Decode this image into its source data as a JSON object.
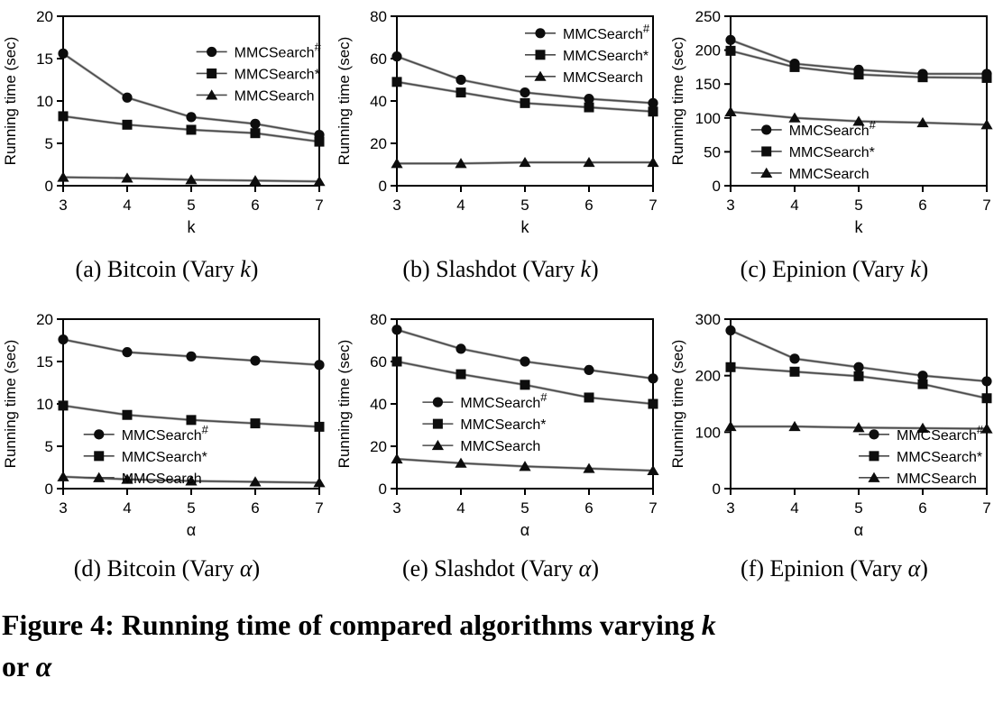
{
  "figure": {
    "caption_line1_pre": "Figure 4: Running time of compared algorithms varying ",
    "caption_line1_var": "k",
    "caption_line2_pre": "or ",
    "caption_line2_var": "α"
  },
  "styles": {
    "axis_color": "#000000",
    "line_color": "#4a4a4a",
    "line_shadow_color": "#b0b0b0",
    "marker_color": "#0d0d0d",
    "text_color": "#000000"
  },
  "chart_data": [
    {
      "id": "a",
      "type": "line",
      "dataset": "Bitcoin",
      "caption": {
        "pre": "(a) Bitcoin (Vary ",
        "var": "k",
        "post": ")"
      },
      "xlabel": "k",
      "ylabel": "Running time (sec)",
      "x": [
        3,
        4,
        5,
        6,
        7
      ],
      "xlim": [
        3,
        7
      ],
      "ylim": [
        0,
        20
      ],
      "yticks": [
        0,
        5,
        10,
        15,
        20
      ],
      "grid": false,
      "legend": {
        "position": "top-right",
        "x": 0.52,
        "y": 0.21
      },
      "series": [
        {
          "base": "MMCSearch",
          "sup": "#",
          "marker": "circle",
          "values": [
            15.6,
            10.4,
            8.1,
            7.3,
            6.0
          ]
        },
        {
          "base": "MMCSearch",
          "sup": "*",
          "marker": "square",
          "values": [
            8.2,
            7.2,
            6.6,
            6.2,
            5.2
          ]
        },
        {
          "base": "MMCSearch",
          "sup": "",
          "marker": "triangle",
          "values": [
            1.0,
            0.9,
            0.7,
            0.6,
            0.5
          ]
        }
      ]
    },
    {
      "id": "b",
      "type": "line",
      "dataset": "Slashdot",
      "caption": {
        "pre": "(b) Slashdot (Vary ",
        "var": "k",
        "post": ")"
      },
      "xlabel": "k",
      "ylabel": "Running time (sec)",
      "x": [
        3,
        4,
        5,
        6,
        7
      ],
      "xlim": [
        3,
        7
      ],
      "ylim": [
        0,
        80
      ],
      "yticks": [
        0,
        20,
        40,
        60,
        80
      ],
      "grid": false,
      "legend": {
        "position": "top-right",
        "x": 0.5,
        "y": 0.1
      },
      "series": [
        {
          "base": "MMCSearch",
          "sup": "#",
          "marker": "circle",
          "values": [
            61,
            50,
            44,
            41,
            39
          ]
        },
        {
          "base": "MMCSearch",
          "sup": "*",
          "marker": "square",
          "values": [
            49,
            44,
            39,
            37,
            35
          ]
        },
        {
          "base": "MMCSearch",
          "sup": "",
          "marker": "triangle",
          "values": [
            10.5,
            10.5,
            11,
            11,
            11
          ]
        }
      ]
    },
    {
      "id": "c",
      "type": "line",
      "dataset": "Epinion",
      "caption": {
        "pre": "(c) Epinion (Vary ",
        "var": "k",
        "post": ")"
      },
      "xlabel": "k",
      "ylabel": "Running time (sec)",
      "x": [
        3,
        4,
        5,
        6,
        7
      ],
      "xlim": [
        3,
        7
      ],
      "ylim": [
        0,
        250
      ],
      "yticks": [
        0,
        50,
        100,
        150,
        200,
        250
      ],
      "grid": false,
      "legend": {
        "position": "mid-left",
        "x": 0.08,
        "y": 0.67
      },
      "series": [
        {
          "base": "MMCSearch",
          "sup": "#",
          "marker": "circle",
          "values": [
            215,
            180,
            171,
            165,
            165
          ]
        },
        {
          "base": "MMCSearch",
          "sup": "*",
          "marker": "square",
          "values": [
            199,
            175,
            164,
            160,
            159
          ]
        },
        {
          "base": "MMCSearch",
          "sup": "",
          "marker": "triangle",
          "values": [
            109,
            100,
            95,
            93,
            90
          ]
        }
      ]
    },
    {
      "id": "d",
      "type": "line",
      "dataset": "Bitcoin",
      "caption": {
        "pre": "(d) Bitcoin (Vary ",
        "var": "α",
        "post": ")"
      },
      "xlabel": "α",
      "ylabel": "Running time (sec)",
      "x": [
        3,
        4,
        5,
        6,
        7
      ],
      "xlim": [
        3,
        7
      ],
      "ylim": [
        0,
        20
      ],
      "yticks": [
        0,
        5,
        10,
        15,
        20
      ],
      "grid": false,
      "legend": {
        "position": "mid-left",
        "x": 0.08,
        "y": 0.68
      },
      "series": [
        {
          "base": "MMCSearch",
          "sup": "#",
          "marker": "circle",
          "values": [
            17.6,
            16.1,
            15.6,
            15.1,
            14.6
          ]
        },
        {
          "base": "MMCSearch",
          "sup": "*",
          "marker": "square",
          "values": [
            9.8,
            8.7,
            8.1,
            7.7,
            7.3
          ]
        },
        {
          "base": "MMCSearch",
          "sup": "",
          "marker": "triangle",
          "values": [
            1.4,
            1.1,
            0.9,
            0.8,
            0.7
          ]
        }
      ]
    },
    {
      "id": "e",
      "type": "line",
      "dataset": "Slashdot",
      "caption": {
        "pre": "(e) Slashdot (Vary ",
        "var": "α",
        "post": ")"
      },
      "xlabel": "α",
      "ylabel": "Running time (sec)",
      "x": [
        3,
        4,
        5,
        6,
        7
      ],
      "xlim": [
        3,
        7
      ],
      "ylim": [
        0,
        80
      ],
      "yticks": [
        0,
        20,
        40,
        60,
        80
      ],
      "grid": false,
      "legend": {
        "position": "mid-left",
        "x": 0.1,
        "y": 0.49
      },
      "series": [
        {
          "base": "MMCSearch",
          "sup": "#",
          "marker": "circle",
          "values": [
            75,
            66,
            60,
            56,
            52
          ]
        },
        {
          "base": "MMCSearch",
          "sup": "*",
          "marker": "square",
          "values": [
            60,
            54,
            49,
            43,
            40
          ]
        },
        {
          "base": "MMCSearch",
          "sup": "",
          "marker": "triangle",
          "values": [
            14,
            12,
            10.5,
            9.5,
            8.5
          ]
        }
      ]
    },
    {
      "id": "f",
      "type": "line",
      "dataset": "Epinion",
      "caption": {
        "pre": "(f) Epinion (Vary ",
        "var": "α",
        "post": ")"
      },
      "xlabel": "α",
      "ylabel": "Running time (sec)",
      "x": [
        3,
        4,
        5,
        6,
        7
      ],
      "xlim": [
        3,
        7
      ],
      "ylim": [
        0,
        300
      ],
      "yticks": [
        0,
        100,
        200,
        300
      ],
      "grid": false,
      "legend": {
        "position": "bottom-right",
        "x": 0.5,
        "y": 0.68
      },
      "series": [
        {
          "base": "MMCSearch",
          "sup": "#",
          "marker": "circle",
          "values": [
            280,
            230,
            215,
            200,
            190
          ]
        },
        {
          "base": "MMCSearch",
          "sup": "*",
          "marker": "square",
          "values": [
            215,
            207,
            199,
            185,
            160
          ]
        },
        {
          "base": "MMCSearch",
          "sup": "",
          "marker": "triangle",
          "values": [
            110,
            110,
            108,
            107,
            106
          ]
        }
      ]
    }
  ]
}
